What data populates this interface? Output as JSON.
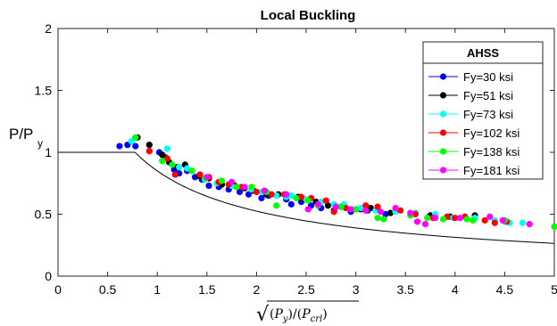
{
  "chart_data": {
    "type": "scatter",
    "title": "Local Buckling",
    "xlabel": "√((P_y)/(P_crl))",
    "xlabel_parts": {
      "radical": "√",
      "lp1": "(",
      "py_main": "P",
      "py_sub": "y",
      "rp1": ")",
      "slash": "/",
      "lp2": "(",
      "pc_main": "P",
      "pc_sub": "crl",
      "rp2": ")"
    },
    "ylabel": "P/P",
    "ylabel_sub": "y",
    "xlim": [
      0,
      5
    ],
    "ylim": [
      0,
      2
    ],
    "xticks": [
      0,
      0.5,
      1,
      1.5,
      2,
      2.5,
      3,
      3.5,
      4,
      4.5,
      5
    ],
    "xtick_labels": [
      "0",
      "0.5",
      "1",
      "1.5",
      "2",
      "2.5",
      "3",
      "3.5",
      "4",
      "4.5",
      "5"
    ],
    "yticks": [
      0,
      0.5,
      1,
      1.5,
      2
    ],
    "ytick_labels": [
      "0",
      "0.5",
      "1",
      "1.5",
      "2"
    ],
    "grid": false,
    "legend": {
      "title": "AHSS",
      "position": "top-right"
    },
    "series": [
      {
        "name": "Fy=30 ksi",
        "color": "#0000ff",
        "points": [
          [
            0.62,
            1.05
          ],
          [
            0.7,
            1.06
          ],
          [
            0.78,
            1.05
          ],
          [
            1.02,
            1.0
          ],
          [
            1.08,
            0.96
          ],
          [
            1.17,
            0.86
          ],
          [
            1.22,
            0.83
          ],
          [
            1.3,
            0.85
          ],
          [
            1.38,
            0.8
          ],
          [
            1.45,
            0.78
          ],
          [
            1.52,
            0.73
          ],
          [
            1.62,
            0.72
          ],
          [
            1.72,
            0.7
          ],
          [
            1.83,
            0.68
          ],
          [
            1.92,
            0.66
          ],
          [
            2.05,
            0.63
          ],
          [
            2.12,
            0.65
          ],
          [
            2.3,
            0.62
          ],
          [
            2.35,
            0.58
          ],
          [
            2.45,
            0.6
          ],
          [
            2.55,
            0.57
          ],
          [
            2.65,
            0.55
          ],
          [
            2.78,
            0.53
          ],
          [
            2.95,
            0.52
          ],
          [
            3.12,
            0.53
          ],
          [
            3.3,
            0.5
          ]
        ]
      },
      {
        "name": "Fy=51 ksi",
        "color": "#000000",
        "points": [
          [
            0.8,
            1.12
          ],
          [
            0.92,
            1.06
          ],
          [
            1.05,
            0.98
          ],
          [
            1.12,
            0.92
          ],
          [
            1.2,
            0.88
          ],
          [
            1.28,
            0.9
          ],
          [
            1.42,
            0.81
          ],
          [
            1.52,
            0.79
          ],
          [
            1.65,
            0.74
          ],
          [
            1.78,
            0.73
          ],
          [
            1.88,
            0.71
          ],
          [
            1.97,
            0.69
          ],
          [
            2.1,
            0.66
          ],
          [
            2.22,
            0.66
          ],
          [
            2.42,
            0.64
          ],
          [
            2.48,
            0.62
          ],
          [
            2.6,
            0.6
          ],
          [
            2.72,
            0.57
          ],
          [
            2.85,
            0.56
          ],
          [
            3.0,
            0.54
          ],
          [
            3.05,
            0.54
          ],
          [
            3.15,
            0.55
          ],
          [
            3.35,
            0.51
          ],
          [
            3.6,
            0.51
          ],
          [
            3.75,
            0.49
          ],
          [
            3.95,
            0.48
          ],
          [
            4.2,
            0.49
          ]
        ]
      },
      {
        "name": "Fy=73 ksi",
        "color": "#00ffff",
        "points": [
          [
            0.74,
            1.09
          ],
          [
            1.1,
            1.03
          ],
          [
            1.22,
            0.88
          ],
          [
            1.3,
            0.87
          ],
          [
            1.48,
            0.78
          ],
          [
            1.6,
            0.75
          ],
          [
            1.75,
            0.73
          ],
          [
            1.95,
            0.7
          ],
          [
            2.05,
            0.68
          ],
          [
            2.2,
            0.65
          ],
          [
            2.3,
            0.64
          ],
          [
            2.35,
            0.65
          ],
          [
            2.5,
            0.62
          ],
          [
            2.65,
            0.6
          ],
          [
            2.78,
            0.58
          ],
          [
            2.88,
            0.58
          ],
          [
            3.05,
            0.55
          ],
          [
            3.2,
            0.53
          ],
          [
            3.4,
            0.52
          ],
          [
            3.6,
            0.51
          ],
          [
            3.8,
            0.5
          ],
          [
            3.98,
            0.47
          ],
          [
            4.2,
            0.47
          ],
          [
            4.4,
            0.45
          ],
          [
            4.5,
            0.44
          ],
          [
            4.55,
            0.43
          ],
          [
            4.68,
            0.43
          ]
        ]
      },
      {
        "name": "Fy=102 ksi",
        "color": "#ff0000",
        "points": [
          [
            0.92,
            1.01
          ],
          [
            1.1,
            0.95
          ],
          [
            1.18,
            0.82
          ],
          [
            1.43,
            0.82
          ],
          [
            1.52,
            0.8
          ],
          [
            1.62,
            0.76
          ],
          [
            1.72,
            0.74
          ],
          [
            1.85,
            0.72
          ],
          [
            2.0,
            0.68
          ],
          [
            2.15,
            0.66
          ],
          [
            2.28,
            0.66
          ],
          [
            2.45,
            0.64
          ],
          [
            2.55,
            0.63
          ],
          [
            2.7,
            0.61
          ],
          [
            2.78,
            0.52
          ],
          [
            2.9,
            0.55
          ],
          [
            3.1,
            0.57
          ],
          [
            3.22,
            0.56
          ],
          [
            3.45,
            0.53
          ],
          [
            3.6,
            0.5
          ],
          [
            3.78,
            0.47
          ],
          [
            3.92,
            0.48
          ],
          [
            4.0,
            0.47
          ],
          [
            4.1,
            0.48
          ],
          [
            4.3,
            0.45
          ],
          [
            4.4,
            0.43
          ],
          [
            4.52,
            0.44
          ]
        ]
      },
      {
        "name": "Fy=138 ksi",
        "color": "#00ff00",
        "points": [
          [
            0.78,
            1.12
          ],
          [
            1.05,
            0.93
          ],
          [
            1.15,
            0.9
          ],
          [
            1.35,
            0.85
          ],
          [
            1.48,
            0.79
          ],
          [
            1.65,
            0.77
          ],
          [
            1.8,
            0.72
          ],
          [
            1.95,
            0.72
          ],
          [
            2.1,
            0.68
          ],
          [
            2.2,
            0.57
          ],
          [
            2.4,
            0.63
          ],
          [
            2.52,
            0.61
          ],
          [
            2.62,
            0.57
          ],
          [
            2.85,
            0.56
          ],
          [
            3.0,
            0.54
          ],
          [
            3.22,
            0.47
          ],
          [
            3.28,
            0.46
          ],
          [
            3.55,
            0.49
          ],
          [
            3.72,
            0.47
          ],
          [
            3.88,
            0.46
          ],
          [
            4.12,
            0.46
          ],
          [
            4.18,
            0.45
          ],
          [
            4.5,
            0.45
          ],
          [
            5.0,
            0.4
          ]
        ]
      },
      {
        "name": "Fy=181 ksi",
        "color": "#ff00ff",
        "points": [
          [
            1.5,
            0.8
          ],
          [
            1.75,
            0.76
          ],
          [
            1.88,
            0.72
          ],
          [
            2.08,
            0.69
          ],
          [
            2.3,
            0.66
          ],
          [
            2.52,
            0.54
          ],
          [
            2.62,
            0.58
          ],
          [
            2.8,
            0.56
          ],
          [
            2.95,
            0.54
          ],
          [
            3.1,
            0.53
          ],
          [
            3.25,
            0.52
          ],
          [
            3.4,
            0.55
          ],
          [
            3.55,
            0.51
          ],
          [
            3.62,
            0.44
          ],
          [
            3.7,
            0.42
          ],
          [
            3.8,
            0.47
          ],
          [
            4.05,
            0.47
          ],
          [
            4.35,
            0.48
          ],
          [
            4.48,
            0.45
          ],
          [
            4.75,
            0.42
          ]
        ]
      }
    ],
    "curve": {
      "name": "",
      "color": "#000000",
      "description": "P/Py = 1 for x <= 0.776; P/Py = (1 - 0.15 x^-0.8) x^-0.8 for x > 0.776"
    }
  }
}
